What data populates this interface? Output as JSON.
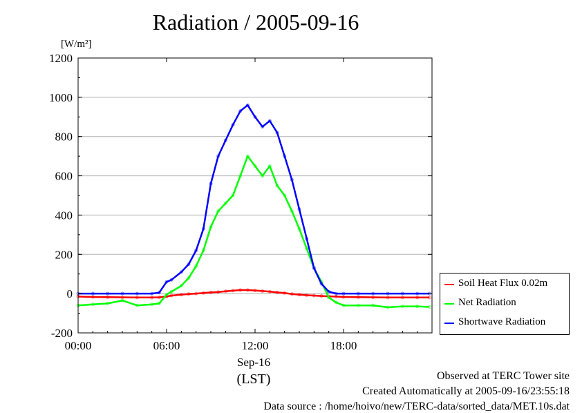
{
  "title": "Radiation / 2005-09-16",
  "unit_label": "[W/m²]",
  "x_axis": {
    "date_label": "Sep-16",
    "tz_label": "(LST)"
  },
  "footer": {
    "line1": "Observed at TERC Tower site",
    "line2": "Created Automatically at 2005-09-16/23:55:18",
    "line3": "Data source : /home/hoivo/new/TERC-data/sorted_data/MET.10s.dat"
  },
  "chart_data": {
    "type": "line",
    "title": "Radiation / 2005-09-16",
    "ylabel": "[W/m²]",
    "ylim": [
      -200,
      1200
    ],
    "xlim": [
      "00:00",
      "23:59"
    ],
    "yticks": [
      -200,
      0,
      200,
      400,
      600,
      800,
      1000,
      1200
    ],
    "xticks": [
      "00:00",
      "06:00",
      "12:00",
      "18:00"
    ],
    "grid": true,
    "legend_position": "bottom-right outside",
    "x": [
      "00:00",
      "01:00",
      "02:00",
      "03:00",
      "04:00",
      "05:00",
      "05:30",
      "06:00",
      "06:20",
      "07:00",
      "07:30",
      "08:00",
      "08:30",
      "09:00",
      "09:30",
      "10:00",
      "10:30",
      "11:00",
      "11:30",
      "12:00",
      "12:30",
      "13:00",
      "13:30",
      "14:00",
      "14:30",
      "15:00",
      "15:30",
      "16:00",
      "16:30",
      "17:00",
      "17:30",
      "18:00",
      "19:00",
      "20:00",
      "21:00",
      "22:00",
      "23:00",
      "23:50"
    ],
    "series": [
      {
        "name": "Soil Heat Flux 0.02m",
        "color": "#ff0000",
        "values": [
          -15,
          -17,
          -18,
          -19,
          -20,
          -20,
          -19,
          -15,
          -10,
          -5,
          -2,
          0,
          3,
          6,
          8,
          12,
          15,
          18,
          18,
          16,
          13,
          10,
          6,
          3,
          -2,
          -5,
          -8,
          -10,
          -12,
          -14,
          -15,
          -17,
          -18,
          -19,
          -20,
          -20,
          -20,
          -20
        ]
      },
      {
        "name": "Net Radiation",
        "color": "#00ff00",
        "values": [
          -60,
          -55,
          -50,
          -35,
          -60,
          -55,
          -50,
          -5,
          10,
          40,
          80,
          140,
          220,
          340,
          420,
          460,
          500,
          600,
          700,
          650,
          600,
          650,
          550,
          500,
          420,
          330,
          230,
          130,
          60,
          -20,
          -45,
          -60,
          -60,
          -60,
          -70,
          -65,
          -65,
          -68
        ]
      },
      {
        "name": "Shortwave Radiation",
        "color": "#0000ff",
        "values": [
          0,
          0,
          0,
          0,
          0,
          0,
          5,
          60,
          70,
          110,
          150,
          220,
          330,
          560,
          700,
          780,
          860,
          930,
          960,
          900,
          850,
          880,
          820,
          700,
          580,
          430,
          280,
          130,
          50,
          10,
          0,
          0,
          0,
          0,
          0,
          0,
          0,
          0
        ]
      }
    ]
  }
}
